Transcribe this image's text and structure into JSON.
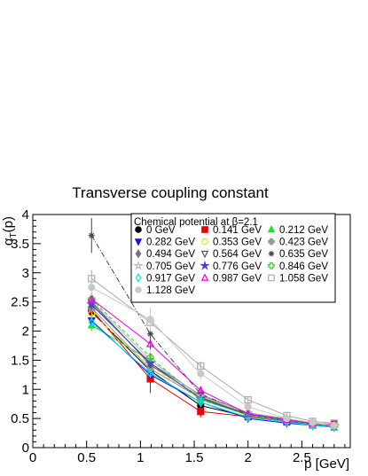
{
  "chart_data": {
    "type": "scatter",
    "title": "Transverse coupling constant",
    "xlabel": "p [GeV]",
    "ylabel_main": "α",
    "ylabel_sub": "T",
    "ylabel_tail": "(p)",
    "xlim": [
      0,
      2.95
    ],
    "ylim": [
      0,
      4
    ],
    "x_ticks": [
      0,
      0.5,
      1,
      1.5,
      2,
      2.5
    ],
    "x_tick_labels": [
      "0",
      "0.5",
      "1",
      "1.5",
      "2",
      "2.5"
    ],
    "y_ticks": [
      0,
      0.5,
      1,
      1.5,
      2,
      2.5,
      3,
      3.5,
      4
    ],
    "y_tick_labels": [
      "0",
      "0.5",
      "1",
      "1.5",
      "2",
      "2.5",
      "3",
      "3.5",
      "4"
    ],
    "grid": false,
    "legend": {
      "title": "Chemical potential at β=2.1",
      "placement": "top-right"
    },
    "x": [
      0.546,
      1.092,
      1.56,
      2.0,
      2.36,
      2.6,
      2.8
    ],
    "series": [
      {
        "name": "0 GeV",
        "color": "#000000",
        "marker": "circle",
        "line": "solid",
        "values": [
          2.33,
          1.32,
          0.72,
          0.53,
          0.44,
          0.39,
          0.37
        ],
        "errors": [
          0.1,
          0.1,
          0.06,
          0.04,
          0.03,
          0.03,
          0.03
        ]
      },
      {
        "name": "0.141 GeV",
        "color": "#e8000b",
        "marker": "square",
        "line": "solid",
        "values": [
          2.37,
          1.18,
          0.62,
          0.53,
          0.44,
          0.39,
          0.4
        ],
        "errors": [
          0.12,
          0.24,
          0.1,
          0.05,
          0.04,
          0.04,
          0.04
        ]
      },
      {
        "name": "0.212 GeV",
        "color": "#22dd22",
        "marker": "triangle",
        "line": "solid",
        "values": [
          2.1,
          1.5,
          0.88,
          0.55,
          0.46,
          0.38,
          0.35
        ],
        "errors": [
          0.1,
          0.08,
          0.06,
          0.04,
          0.03,
          0.03,
          0.03
        ]
      },
      {
        "name": "0.282 GeV",
        "color": "#1010ee",
        "marker": "triangle-down",
        "line": "solid",
        "values": [
          2.18,
          1.25,
          0.78,
          0.5,
          0.42,
          0.38,
          0.35
        ],
        "errors": [
          0.1,
          0.08,
          0.06,
          0.04,
          0.03,
          0.03,
          0.03
        ]
      },
      {
        "name": "0.353 GeV",
        "color": "#e8e800",
        "marker": "circle-open",
        "line": "dashed",
        "values": [
          2.3,
          1.4,
          0.82,
          0.55,
          0.47,
          0.4,
          0.36
        ],
        "errors": [
          0.1,
          0.08,
          0.06,
          0.04,
          0.03,
          0.03,
          0.03
        ]
      },
      {
        "name": "0.423 GeV",
        "color": "#999999",
        "marker": "cross",
        "line": "solid",
        "values": [
          2.4,
          1.35,
          0.85,
          0.58,
          0.48,
          0.41,
          0.38
        ],
        "errors": [
          0.1,
          0.08,
          0.06,
          0.04,
          0.03,
          0.03,
          0.03
        ]
      },
      {
        "name": "0.494 GeV",
        "color": "#777777",
        "marker": "diamond",
        "line": "solid",
        "values": [
          2.45,
          1.45,
          0.9,
          0.6,
          0.49,
          0.42,
          0.38
        ],
        "errors": [
          0.1,
          0.08,
          0.06,
          0.04,
          0.03,
          0.03,
          0.03
        ]
      },
      {
        "name": "0.564 GeV",
        "color": "#555555",
        "marker": "triangle-down-open",
        "line": "solid",
        "values": [
          2.5,
          1.42,
          0.86,
          0.57,
          0.47,
          0.4,
          0.37
        ],
        "errors": [
          0.1,
          0.08,
          0.06,
          0.04,
          0.03,
          0.03,
          0.03
        ]
      },
      {
        "name": "0.635 GeV",
        "color": "#444444",
        "marker": "asterisk",
        "line": "dashdot",
        "values": [
          3.64,
          1.95,
          0.92,
          0.58,
          0.48,
          0.42,
          0.39
        ],
        "errors": [
          0.3,
          0.12,
          0.06,
          0.04,
          0.03,
          0.03,
          0.03
        ]
      },
      {
        "name": "0.705 GeV",
        "color": "#bbbbbb",
        "marker": "star-open",
        "line": "solid",
        "values": [
          2.52,
          1.5,
          0.88,
          0.6,
          0.5,
          0.42,
          0.38
        ],
        "errors": [
          0.1,
          0.08,
          0.06,
          0.04,
          0.03,
          0.03,
          0.03
        ]
      },
      {
        "name": "0.776 GeV",
        "color": "#4444cc",
        "marker": "star",
        "line": "solid",
        "values": [
          2.46,
          1.45,
          0.84,
          0.56,
          0.46,
          0.4,
          0.36
        ],
        "errors": [
          0.1,
          0.08,
          0.06,
          0.04,
          0.03,
          0.03,
          0.03
        ]
      },
      {
        "name": "0.846 GeV",
        "color": "#33cc33",
        "marker": "cross-open",
        "line": "dashed",
        "values": [
          2.55,
          1.55,
          0.82,
          0.56,
          0.47,
          0.4,
          0.37
        ],
        "errors": [
          0.1,
          0.08,
          0.06,
          0.04,
          0.03,
          0.03,
          0.03
        ]
      },
      {
        "name": "0.917 GeV",
        "color": "#00e5e5",
        "marker": "diamond-open",
        "line": "solid",
        "values": [
          2.15,
          1.28,
          0.78,
          0.52,
          0.44,
          0.38,
          0.35
        ],
        "errors": [
          0.1,
          0.08,
          0.06,
          0.04,
          0.03,
          0.03,
          0.03
        ]
      },
      {
        "name": "0.987 GeV",
        "color": "#e800e8",
        "marker": "triangle-open",
        "line": "solid",
        "values": [
          2.55,
          1.78,
          0.98,
          0.58,
          0.48,
          0.42,
          0.4
        ],
        "errors": [
          0.1,
          0.1,
          0.06,
          0.04,
          0.03,
          0.03,
          0.03
        ]
      },
      {
        "name": "1.058 GeV",
        "color": "#aaaaaa",
        "marker": "square-open",
        "line": "solid",
        "values": [
          2.9,
          2.15,
          1.4,
          0.82,
          0.55,
          0.45,
          0.42
        ],
        "errors": [
          0.15,
          0.12,
          0.08,
          0.06,
          0.04,
          0.03,
          0.03
        ]
      },
      {
        "name": "1.128 GeV",
        "color": "#c8c8c8",
        "marker": "circle",
        "line": "solid",
        "values": [
          2.75,
          2.2,
          1.27,
          0.7,
          0.5,
          0.43,
          0.38
        ],
        "errors": [
          0.15,
          0.2,
          0.1,
          0.05,
          0.04,
          0.03,
          0.03
        ]
      }
    ]
  }
}
